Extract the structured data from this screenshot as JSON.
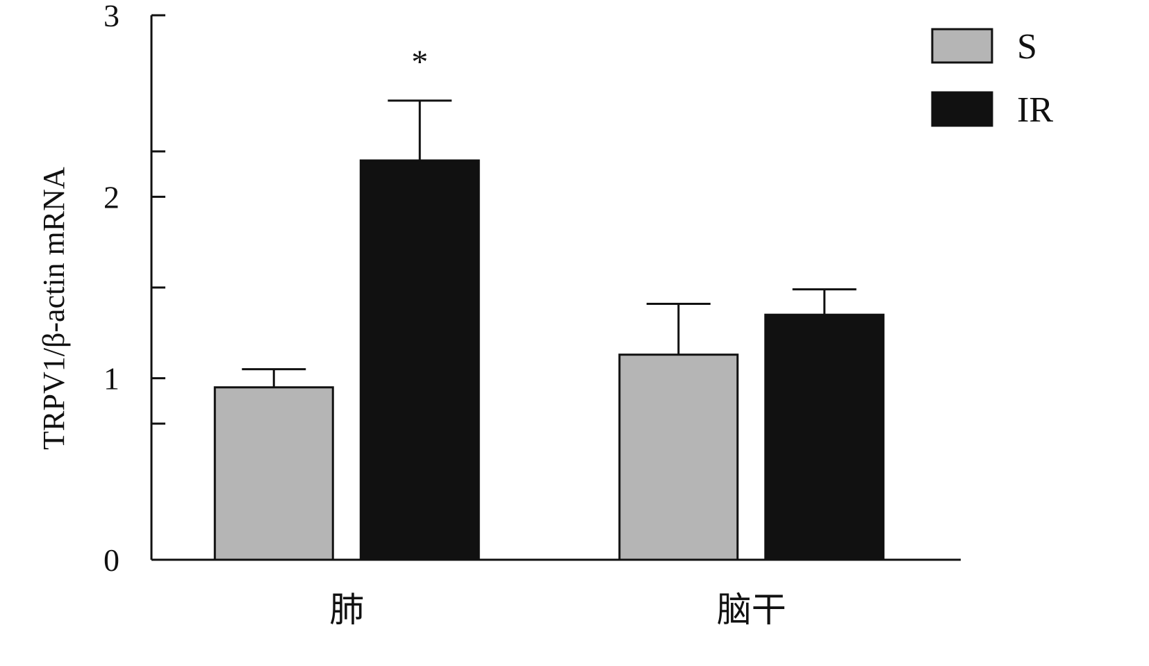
{
  "chart_data": {
    "type": "bar",
    "categories": [
      "肺",
      "脑干"
    ],
    "series": [
      {
        "name": "S",
        "values": [
          0.95,
          1.13
        ],
        "errors": [
          0.1,
          0.28
        ],
        "color": "#b5b5b5"
      },
      {
        "name": "IR",
        "values": [
          2.2,
          1.35
        ],
        "errors": [
          0.33,
          0.14
        ],
        "color": "#111111"
      }
    ],
    "ylabel": "TRPV1/β-actin mRNA",
    "ylim": [
      0,
      3
    ],
    "yticks": [
      0,
      1,
      2,
      3
    ],
    "yticks_minor": [
      0.75,
      1.5,
      2.25
    ],
    "significance": [
      {
        "category": "肺",
        "series": "IR",
        "label": "*"
      }
    ],
    "legend": "top-right",
    "grid": false
  }
}
